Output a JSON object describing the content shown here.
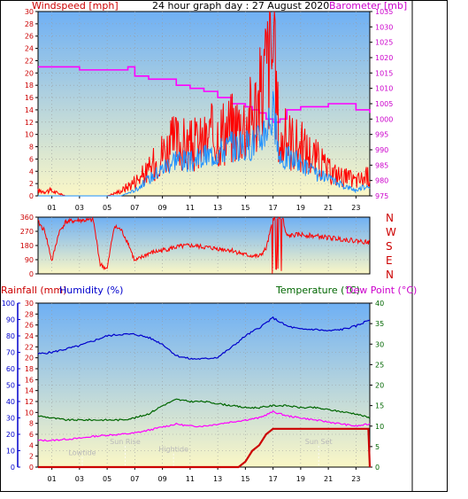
{
  "header": {
    "title": "24 hour graph day : 27 August 2020",
    "windspeed_label": "Windspeed [mph]",
    "barometer_label": "Barometer [mb]"
  },
  "colors": {
    "wind": "#ff0000",
    "gust_avg": "#1e90ff",
    "barometer": "#ff00ff",
    "humidity": "#0000cc",
    "temperature": "#006600",
    "dewpoint": "#ff00ff",
    "rain": "#cc0000",
    "sky_top": "#72b3f5",
    "sky_bottom": "#fbf6c8"
  },
  "x_ticks": [
    "01",
    "03",
    "05",
    "07",
    "09",
    "11",
    "13",
    "15",
    "17",
    "19",
    "21",
    "23"
  ],
  "chart_data": [
    {
      "type": "line",
      "name": "wind_and_pressure",
      "x_label_units": "hour",
      "xlim": [
        0,
        24
      ],
      "y_left": {
        "label": "Windspeed [mph]",
        "ylim": [
          0,
          30
        ],
        "ticks": [
          0,
          2,
          4,
          6,
          8,
          10,
          12,
          14,
          16,
          18,
          20,
          22,
          24,
          26,
          28,
          30
        ]
      },
      "y_right": {
        "label": "Barometer [mb]",
        "ylim": [
          975,
          1035
        ],
        "ticks": [
          975,
          980,
          985,
          990,
          995,
          1000,
          1005,
          1010,
          1015,
          1020,
          1025,
          1030,
          1035
        ]
      },
      "wind_max": {
        "x": [
          0,
          1,
          2,
          3,
          4,
          5,
          6,
          7,
          8,
          9,
          10,
          11,
          12,
          13,
          14,
          15,
          16,
          16.5,
          17,
          17.5,
          18,
          19,
          20,
          21,
          22,
          23,
          23.9
        ],
        "y": [
          1,
          1,
          0,
          0,
          0,
          0,
          1,
          3,
          5,
          9,
          11,
          10,
          11,
          13,
          14,
          15,
          19,
          26,
          30,
          10,
          12,
          10,
          8,
          5,
          4,
          3,
          4
        ]
      },
      "wind_avg": {
        "x": [
          0,
          1,
          2,
          3,
          4,
          5,
          6,
          7,
          8,
          9,
          10,
          11,
          12,
          13,
          14,
          15,
          16,
          16.5,
          17,
          17.5,
          18,
          19,
          20,
          21,
          22,
          23,
          23.9
        ],
        "y": [
          0,
          0,
          0,
          0,
          0,
          0,
          0,
          1,
          3,
          5,
          7,
          6,
          7,
          8,
          9,
          9,
          10,
          13,
          15,
          6,
          7,
          6,
          4,
          3,
          2,
          1,
          2
        ]
      },
      "pressure": {
        "x": [
          0,
          1,
          2,
          3,
          4,
          5,
          6,
          6.5,
          7,
          8,
          9,
          10,
          11,
          12,
          13,
          14,
          15,
          15.5,
          16,
          16.5,
          17,
          17.5,
          18,
          19,
          20,
          21,
          22,
          23,
          24
        ],
        "y": [
          1017,
          1017,
          1017,
          1016,
          1016,
          1016,
          1016,
          1017,
          1014,
          1013,
          1013,
          1011,
          1010,
          1009,
          1007,
          1005,
          1004,
          1003,
          1002,
          1000,
          999,
          1000,
          1003,
          1004,
          1004,
          1005,
          1005,
          1003,
          1002
        ]
      }
    },
    {
      "type": "scatter",
      "name": "wind_direction",
      "xlim": [
        0,
        24
      ],
      "y_left": {
        "ylim": [
          0,
          360
        ],
        "ticks": [
          0,
          90,
          180,
          270,
          360
        ]
      },
      "y_right_labels": [
        "N",
        "W",
        "S",
        "E",
        "N"
      ],
      "direction": {
        "x": [
          0,
          0.5,
          1,
          1.5,
          2,
          3,
          4,
          4.5,
          5,
          5.5,
          6,
          6.5,
          7,
          8,
          9,
          10,
          11,
          12,
          13,
          14,
          15,
          16,
          16.5,
          17,
          17.3,
          17.6,
          18,
          19,
          20,
          21,
          22,
          23,
          24
        ],
        "y": [
          330,
          270,
          80,
          260,
          330,
          340,
          340,
          60,
          30,
          300,
          280,
          200,
          80,
          130,
          150,
          170,
          180,
          170,
          160,
          150,
          120,
          110,
          160,
          340,
          40,
          350,
          240,
          250,
          240,
          230,
          220,
          210,
          200
        ]
      }
    },
    {
      "type": "line",
      "name": "temperature_humidity_rain",
      "xlim": [
        0,
        24
      ],
      "y_humidity": {
        "label": "Humidity (%)",
        "ylim": [
          0,
          100
        ],
        "ticks": [
          0,
          10,
          20,
          30,
          40,
          50,
          60,
          70,
          80,
          90,
          100
        ]
      },
      "y_rain": {
        "label": "Rainfall (mm)",
        "ylim": [
          0,
          30
        ],
        "ticks": [
          0,
          2,
          4,
          6,
          8,
          10,
          12,
          14,
          16,
          18,
          20,
          22,
          24,
          26,
          28,
          30
        ]
      },
      "y_temp": {
        "label": "Temperature (°C)",
        "ylim": [
          0,
          40
        ],
        "ticks": [
          0,
          5,
          10,
          15,
          20,
          25,
          30,
          35,
          40
        ]
      },
      "dewpoint_label": "Dew Point (°C)",
      "humidity": {
        "x": [
          0,
          1,
          2,
          3,
          4,
          5,
          6,
          7,
          8,
          9,
          10,
          11,
          12,
          13,
          14,
          15,
          16,
          17,
          18,
          19,
          20,
          21,
          22,
          23,
          24
        ],
        "y": [
          69,
          70,
          72,
          74,
          77,
          80,
          81,
          81,
          79,
          75,
          68,
          66,
          66,
          67,
          73,
          80,
          85,
          91,
          86,
          84,
          84,
          83,
          84,
          86,
          90
        ]
      },
      "temperature": {
        "x": [
          0,
          1,
          2,
          3,
          4,
          5,
          6,
          7,
          8,
          9,
          10,
          11,
          12,
          13,
          14,
          15,
          16,
          17,
          18,
          19,
          20,
          21,
          22,
          23,
          24
        ],
        "y": [
          12.5,
          12,
          11.5,
          11.5,
          11.5,
          11.5,
          11.5,
          12,
          13,
          15,
          16.5,
          16,
          16,
          15.5,
          15,
          14.5,
          14.5,
          15,
          15,
          14.5,
          14.5,
          14,
          13.5,
          13,
          12
        ]
      },
      "dewpoint": {
        "x": [
          0,
          1,
          2,
          3,
          4,
          5,
          6,
          7,
          8,
          9,
          10,
          11,
          12,
          13,
          14,
          15,
          16,
          17,
          18,
          19,
          20,
          21,
          22,
          23,
          24
        ],
        "y": [
          6.5,
          6.5,
          6.8,
          7,
          7.5,
          7.8,
          8,
          8.3,
          9,
          9.8,
          10.5,
          10,
          10,
          10.5,
          11,
          11.5,
          12,
          13.5,
          12.5,
          12,
          11.5,
          11,
          10.5,
          10,
          10.5
        ]
      },
      "rainfall": {
        "x": [
          0,
          14.5,
          15,
          15.5,
          16,
          16.5,
          17,
          17.5,
          23.9,
          24
        ],
        "y": [
          0,
          0,
          1,
          3,
          4,
          6,
          7,
          7,
          7,
          0
        ]
      },
      "annotations": [
        {
          "text": "Lowtide",
          "x": 3.2,
          "y_rain": 2.2
        },
        {
          "text": "Sun Rise",
          "x": 6.3,
          "y_rain": 4.2
        },
        {
          "text": "Hightide",
          "x": 9.8,
          "y_rain": 2.8
        },
        {
          "text": "Sun Set",
          "x": 20.3,
          "y_rain": 4.2
        }
      ]
    }
  ]
}
